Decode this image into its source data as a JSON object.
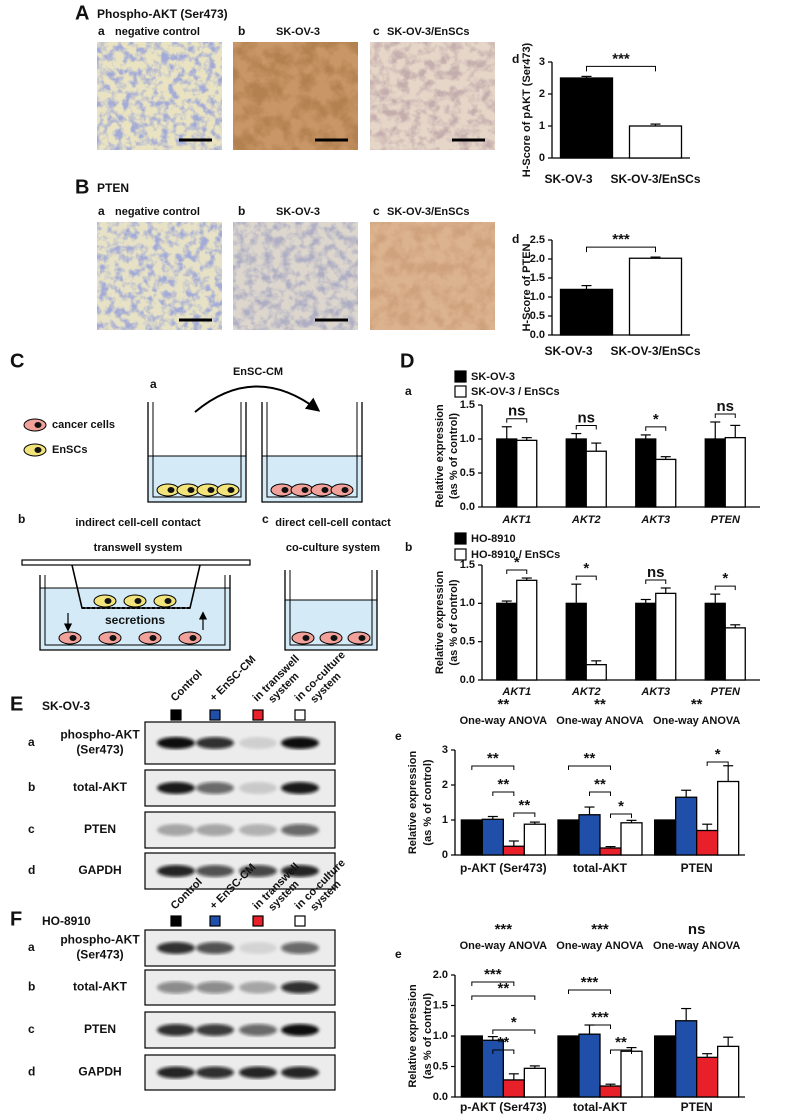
{
  "panel_A": {
    "letter": "A",
    "title": "Phospho-AKT (Ser473)",
    "chart_letter": "d",
    "images": [
      {
        "letter": "a",
        "label": "negative control"
      },
      {
        "letter": "b",
        "label": "SK-OV-3"
      },
      {
        "letter": "c",
        "label": "SK-OV-3/EnSCs"
      }
    ]
  },
  "panel_B": {
    "letter": "B",
    "title": "PTEN",
    "chart_letter": "d",
    "images": [
      {
        "letter": "a",
        "label": "negative control"
      },
      {
        "letter": "b",
        "label": "SK-OV-3"
      },
      {
        "letter": "c",
        "label": "SK-OV-3/EnSCs"
      }
    ]
  },
  "panel_C": {
    "letter": "C",
    "sub_labels": [
      "a",
      "b",
      "c"
    ],
    "arrow_label": "EnSC-CM",
    "legend": [
      "cancer cells",
      "EnSCs"
    ],
    "b_title": [
      "indirect cell-cell contact",
      "transwell system"
    ],
    "secretions": "secretions",
    "c_title": [
      "direct cell-cell contact",
      "co-culture system"
    ]
  },
  "panel_D": {
    "letter": "D",
    "sub_labels": [
      "a",
      "b"
    ]
  },
  "panel_E": {
    "letter": "E",
    "cell_line": "SK-OV-3",
    "chart_letter": "e",
    "columns": [
      [
        "Control"
      ],
      [
        "+ EnSC-CM"
      ],
      [
        "in transwell",
        "system"
      ],
      [
        "in co-culture",
        "system"
      ]
    ],
    "rows": [
      {
        "letter": "a",
        "label": [
          "phospho-AKT",
          "(Ser473)"
        ]
      },
      {
        "letter": "b",
        "label": [
          "total-AKT"
        ]
      },
      {
        "letter": "c",
        "label": [
          "PTEN"
        ]
      },
      {
        "letter": "d",
        "label": [
          "GAPDH"
        ]
      }
    ]
  },
  "panel_F": {
    "letter": "F",
    "cell_line": "HO-8910",
    "chart_letter": "e",
    "columns": [
      [
        "Control"
      ],
      [
        "+ EnSC-CM"
      ],
      [
        "in transwell",
        "system"
      ],
      [
        "in co-culture",
        "system"
      ]
    ],
    "rows": [
      {
        "letter": "a",
        "label": [
          "phospho-AKT",
          "(Ser473)"
        ]
      },
      {
        "letter": "b",
        "label": [
          "total-AKT"
        ]
      },
      {
        "letter": "c",
        "label": [
          "PTEN"
        ]
      },
      {
        "letter": "d",
        "label": [
          "GAPDH"
        ]
      }
    ]
  },
  "chart_data": [
    {
      "type": "bar",
      "ylabel": "H-Score of pAKT (Ser473)",
      "categories": [
        "SK-OV-3",
        "SK-OV-3/EnSCs"
      ],
      "values": [
        2.5,
        1.0
      ],
      "errors": [
        0.05,
        0.06
      ],
      "colors": [
        "#000000",
        "#ffffff"
      ],
      "ylim": [
        0,
        3
      ],
      "yticks": [
        0,
        1,
        2,
        3
      ],
      "annotation": "***"
    },
    {
      "type": "bar",
      "ylabel": "H-Score of PTEN",
      "categories": [
        "SK-OV-3",
        "SK-OV-3/EnSCs"
      ],
      "values": [
        1.2,
        2.02
      ],
      "errors": [
        0.1,
        0.03
      ],
      "colors": [
        "#000000",
        "#ffffff"
      ],
      "ylim": [
        0,
        2.5
      ],
      "yticks": [
        {
          "value": 0,
          "label": "0.0"
        },
        {
          "value": 0.5,
          "label": "0.5"
        },
        {
          "value": 1,
          "label": "1.0"
        },
        {
          "value": 1.5,
          "label": "1.5"
        },
        {
          "value": 2,
          "label": "2.0"
        },
        {
          "value": 2.5,
          "label": "2.5"
        }
      ],
      "annotation": "***"
    },
    {
      "type": "bar",
      "ylabel": [
        "Relative expression",
        "(as % of control)"
      ],
      "categories": [
        "AKT1",
        "AKT2",
        "AKT3",
        "PTEN"
      ],
      "series": [
        {
          "name": "SK-OV-3",
          "color": "#000000",
          "values": [
            1.0,
            1.0,
            1.0,
            1.0
          ],
          "errors": [
            0.18,
            0.08,
            0.06,
            0.25
          ]
        },
        {
          "name": "SK-OV-3 / EnSCs",
          "color": "#ffffff",
          "values": [
            0.98,
            0.82,
            0.7,
            1.02
          ],
          "errors": [
            0.04,
            0.12,
            0.04,
            0.18
          ]
        }
      ],
      "ylim": [
        0,
        1.5
      ],
      "yticks": [
        {
          "value": 0,
          "label": "0.0"
        },
        {
          "value": 0.5,
          "label": "0.5"
        },
        {
          "value": 1,
          "label": "1.0"
        },
        {
          "value": 1.5,
          "label": "1.5"
        }
      ],
      "annotations": [
        "ns",
        "ns",
        "*",
        "ns"
      ]
    },
    {
      "type": "bar",
      "ylabel": [
        "Relative expression",
        "(as % of control)"
      ],
      "categories": [
        "AKT1",
        "AKT2",
        "AKT3",
        "PTEN"
      ],
      "series": [
        {
          "name": "HO-8910",
          "color": "#000000",
          "values": [
            1.0,
            1.0,
            1.0,
            1.0
          ],
          "errors": [
            0.03,
            0.25,
            0.05,
            0.12
          ]
        },
        {
          "name": "HO-8910 / EnSCs",
          "color": "#ffffff",
          "values": [
            1.3,
            0.2,
            1.13,
            0.68
          ],
          "errors": [
            0.03,
            0.05,
            0.07,
            0.04
          ]
        }
      ],
      "ylim": [
        0,
        1.5
      ],
      "yticks": [
        {
          "value": 0,
          "label": "0.0"
        },
        {
          "value": 0.5,
          "label": "0.5"
        },
        {
          "value": 1,
          "label": "1.0"
        },
        {
          "value": 1.5,
          "label": "1.5"
        }
      ],
      "annotations": [
        "*",
        "*",
        "ns",
        "*"
      ]
    },
    {
      "type": "bar",
      "ylabel": [
        "Relative expression",
        "(as % of control)"
      ],
      "categories": [
        "p-AKT (Ser473)",
        "total-AKT",
        "PTEN"
      ],
      "series": [
        {
          "color": "#000000",
          "values": [
            1.0,
            1.0,
            1.0
          ]
        },
        {
          "color": "#1f4fa8",
          "values": [
            1.02,
            1.15,
            1.65
          ],
          "errors": [
            0.08,
            0.22,
            0.2
          ]
        },
        {
          "color": "#e8202a",
          "values": [
            0.25,
            0.2,
            0.7
          ],
          "errors": [
            0.15,
            0.04,
            0.18
          ]
        },
        {
          "color": "#ffffff",
          "values": [
            0.88,
            0.92,
            2.1
          ],
          "errors": [
            0.06,
            0.07,
            0.45
          ]
        }
      ],
      "ylim": [
        0,
        3
      ],
      "yticks": [
        0,
        1,
        2,
        3
      ],
      "group_annotations": [
        {
          "stars": "**",
          "test": "One-way ANOVA"
        },
        {
          "stars": "**",
          "test": "One-way ANOVA"
        },
        {
          "stars": "**",
          "test": "One-way ANOVA"
        }
      ],
      "brackets": [
        "**",
        "**",
        "**",
        "**",
        "**",
        "*",
        "*"
      ]
    },
    {
      "type": "bar",
      "ylabel": [
        "Relative expression",
        "(as % of control)"
      ],
      "categories": [
        "p-AKT (Ser473)",
        "total-AKT",
        "PTEN"
      ],
      "series": [
        {
          "color": "#000000",
          "values": [
            1.0,
            1.0,
            1.0
          ]
        },
        {
          "color": "#1f4fa8",
          "values": [
            0.93,
            1.03,
            1.25
          ],
          "errors": [
            0.06,
            0.15,
            0.2
          ]
        },
        {
          "color": "#e8202a",
          "values": [
            0.28,
            0.18,
            0.65
          ],
          "errors": [
            0.1,
            0.03,
            0.06
          ]
        },
        {
          "color": "#ffffff",
          "values": [
            0.47,
            0.75,
            0.83
          ],
          "errors": [
            0.04,
            0.06,
            0.15
          ]
        }
      ],
      "ylim": [
        0,
        2
      ],
      "yticks": [
        {
          "value": 0,
          "label": "0.0"
        },
        {
          "value": 0.5,
          "label": "0.5"
        },
        {
          "value": 1,
          "label": "1.0"
        },
        {
          "value": 1.5,
          "label": "1.5"
        },
        {
          "value": 2,
          "label": "2.0"
        }
      ],
      "group_annotations": [
        {
          "stars": "***",
          "test": "One-way ANOVA"
        },
        {
          "stars": "***",
          "test": "One-way ANOVA"
        },
        {
          "stars": "ns",
          "test": "One-way ANOVA"
        }
      ],
      "brackets": [
        "***",
        "**",
        "*",
        "**",
        "***",
        "***",
        "**"
      ]
    }
  ]
}
